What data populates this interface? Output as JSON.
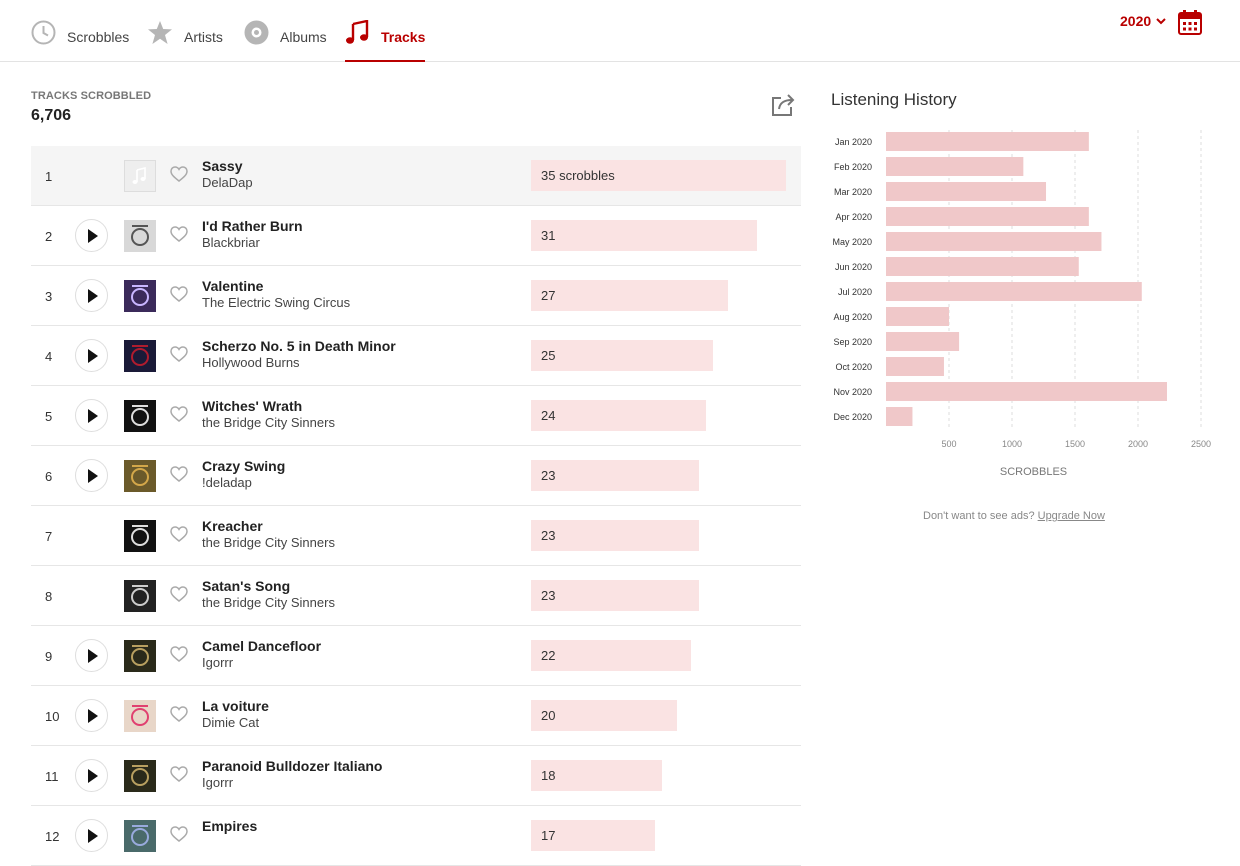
{
  "nav": {
    "tabs": [
      {
        "label": "Scrobbles",
        "icon": "clock-icon"
      },
      {
        "label": "Artists",
        "icon": "star-icon"
      },
      {
        "label": "Albums",
        "icon": "album-icon"
      },
      {
        "label": "Tracks",
        "icon": "music-note-icon"
      }
    ],
    "year": "2020"
  },
  "stats": {
    "label": "TRACKS SCROBBLED",
    "value": "6,706"
  },
  "tracks": [
    {
      "rank": "1",
      "title": "Sassy",
      "artist": "DelaDap",
      "scrobbles": 35,
      "label": "35 scrobbles",
      "playable": false
    },
    {
      "rank": "2",
      "title": "I'd Rather Burn",
      "artist": "Blackbriar",
      "scrobbles": 31,
      "label": "31",
      "playable": true
    },
    {
      "rank": "3",
      "title": "Valentine",
      "artist": "The Electric Swing Circus",
      "scrobbles": 27,
      "label": "27",
      "playable": true
    },
    {
      "rank": "4",
      "title": "Scherzo No. 5 in Death Minor",
      "artist": "Hollywood Burns",
      "scrobbles": 25,
      "label": "25",
      "playable": true
    },
    {
      "rank": "5",
      "title": "Witches' Wrath",
      "artist": "the Bridge City Sinners",
      "scrobbles": 24,
      "label": "24",
      "playable": true
    },
    {
      "rank": "6",
      "title": "Crazy Swing",
      "artist": "!deladap",
      "scrobbles": 23,
      "label": "23",
      "playable": true
    },
    {
      "rank": "7",
      "title": "Kreacher",
      "artist": "the Bridge City Sinners",
      "scrobbles": 23,
      "label": "23",
      "playable": false
    },
    {
      "rank": "8",
      "title": "Satan's Song",
      "artist": "the Bridge City Sinners",
      "scrobbles": 23,
      "label": "23",
      "playable": false
    },
    {
      "rank": "9",
      "title": "Camel Dancefloor",
      "artist": "Igorrr",
      "scrobbles": 22,
      "label": "22",
      "playable": true
    },
    {
      "rank": "10",
      "title": "La voiture",
      "artist": "Dimie Cat",
      "scrobbles": 20,
      "label": "20",
      "playable": true
    },
    {
      "rank": "11",
      "title": "Paranoid Bulldozer Italiano",
      "artist": "Igorrr",
      "scrobbles": 18,
      "label": "18",
      "playable": true
    },
    {
      "rank": "12",
      "title": "Empires",
      "artist": "",
      "scrobbles": 17,
      "label": "17",
      "playable": true
    }
  ],
  "listening_history": {
    "title": "Listening History"
  },
  "chart_data": {
    "type": "bar",
    "orientation": "horizontal",
    "categories": [
      "Jan 2020",
      "Feb 2020",
      "Mar 2020",
      "Apr 2020",
      "May 2020",
      "Jun 2020",
      "Jul 2020",
      "Aug 2020",
      "Sep 2020",
      "Oct 2020",
      "Nov 2020",
      "Dec 2020"
    ],
    "values": [
      1610,
      1090,
      1270,
      1610,
      1710,
      1530,
      2030,
      500,
      580,
      460,
      2230,
      210
    ],
    "xlabel": "SCROBBLES",
    "xticks": [
      "500",
      "1000",
      "1500",
      "2000",
      "2500"
    ],
    "xlim": [
      0,
      2500
    ],
    "grid": true,
    "bar_color": "#f0c8c9"
  },
  "ads": {
    "text": "Don't want to see ads?",
    "link": "Upgrade Now"
  },
  "colors": {
    "accent": "#b90000",
    "bar_fill": "#fae3e3",
    "chart_bar": "#f0c8c9"
  }
}
